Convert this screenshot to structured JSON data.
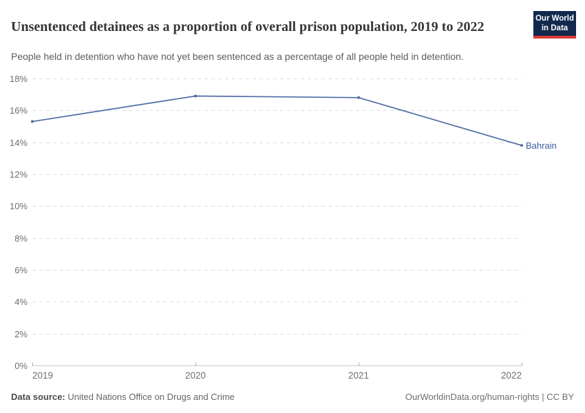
{
  "header": {
    "title": "Unsentenced detainees as a proportion of overall prison population, 2019 to 2022",
    "subtitle": "People held in detention who have not yet been sentenced as a percentage of all people held in detention."
  },
  "logo": {
    "line1": "Our World",
    "line2": "in Data",
    "bg_color": "#12294d",
    "stripe_color": "#dc3a32"
  },
  "chart_data": {
    "type": "line",
    "title": "Unsentenced detainees as a proportion of overall prison population, 2019 to 2022",
    "x": [
      2019,
      2020,
      2021,
      2022
    ],
    "xticks": [
      "2019",
      "2020",
      "2021",
      "2022"
    ],
    "series": [
      {
        "name": "Bahrain",
        "values": [
          15.3,
          16.9,
          16.8,
          13.8
        ],
        "color": "#4d6ba3"
      }
    ],
    "entity_label": "Bahrain",
    "entity_label_color": "#3d5c9e",
    "xlabel": "",
    "ylabel": "",
    "ylim": [
      0,
      18
    ],
    "ytick_step": 2,
    "yticks": [
      "0%",
      "2%",
      "4%",
      "6%",
      "8%",
      "10%",
      "12%",
      "14%",
      "16%",
      "18%"
    ],
    "grid": "horizontal dashed, legend none, markers on points"
  },
  "footer": {
    "source_label": "Data source:",
    "source_value": " United Nations Office on Drugs and Crime",
    "right_text": "OurWorldinData.org/human-rights | CC BY"
  }
}
